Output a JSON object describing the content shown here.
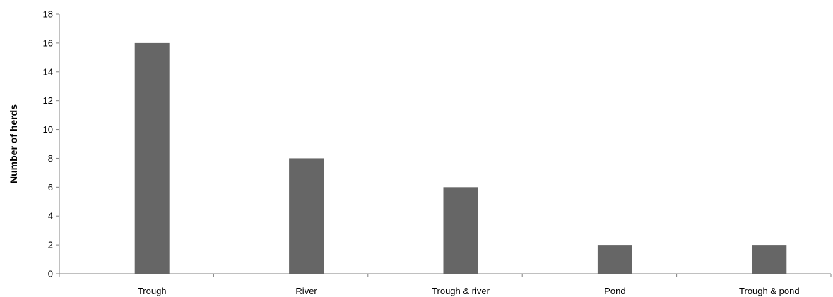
{
  "chart_data": {
    "type": "bar",
    "title": "",
    "xlabel": "",
    "ylabel": "Number of herds",
    "categories": [
      "Trough",
      "River",
      "Trough & river",
      "Pond",
      "Trough & pond"
    ],
    "values": [
      16,
      8,
      6,
      2,
      2
    ],
    "ylim": [
      0,
      18
    ],
    "yticks": [
      0,
      2,
      4,
      6,
      8,
      10,
      12,
      14,
      16,
      18
    ],
    "ytick_labels": [
      "0",
      "2",
      "4",
      "6",
      "8",
      "10",
      "12",
      "14",
      "16",
      "18"
    ],
    "grid": false,
    "legend": "none",
    "bar_color": "#666666",
    "axis_color": "#808080"
  }
}
